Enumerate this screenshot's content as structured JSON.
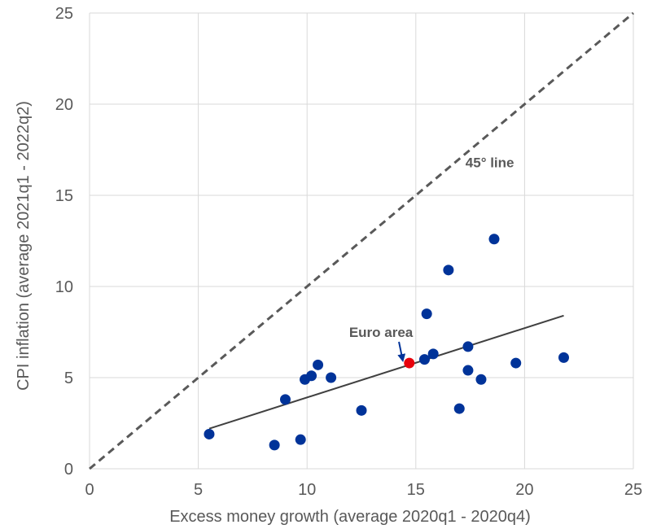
{
  "chart_data": {
    "type": "scatter",
    "title": "",
    "xlabel": "Excess money growth (average 2020q1 - 2020q4)",
    "ylabel": "CPI inflation (average 2021q1 - 2022q2)",
    "xlim": [
      0,
      25
    ],
    "ylim": [
      0,
      25
    ],
    "xticks": [
      0,
      5,
      10,
      15,
      20,
      25
    ],
    "yticks": [
      0,
      5,
      10,
      15,
      20,
      25
    ],
    "grid": true,
    "series": [
      {
        "color": "#003399",
        "points": [
          [
            5.5,
            1.9
          ],
          [
            8.5,
            1.3
          ],
          [
            9.0,
            3.8
          ],
          [
            9.7,
            1.6
          ],
          [
            9.9,
            4.9
          ],
          [
            10.2,
            5.1
          ],
          [
            10.5,
            5.7
          ],
          [
            11.1,
            5.0
          ],
          [
            12.5,
            3.2
          ],
          [
            15.4,
            6.0
          ],
          [
            15.5,
            8.5
          ],
          [
            15.8,
            6.3
          ],
          [
            16.5,
            10.9
          ],
          [
            17.0,
            3.3
          ],
          [
            17.4,
            5.4
          ],
          [
            17.4,
            6.7
          ],
          [
            18.0,
            4.9
          ],
          [
            18.6,
            12.6
          ],
          [
            19.6,
            5.8
          ],
          [
            21.8,
            6.1
          ]
        ]
      },
      {
        "name": "Euro area",
        "color": "#e8000b",
        "points": [
          [
            14.7,
            5.8
          ]
        ]
      }
    ],
    "trendline": {
      "x": [
        5.5,
        21.8
      ],
      "y": [
        2.2,
        8.4
      ],
      "color": "#404040"
    },
    "reference_line": {
      "label": "45° line",
      "x": [
        0,
        25
      ],
      "y": [
        0,
        25
      ],
      "style": "dashed",
      "color": "#595959"
    },
    "annotations": [
      {
        "text": "Euro area",
        "x": 13.4,
        "y": 7.5,
        "arrow_to": [
          14.7,
          5.8
        ]
      },
      {
        "text": "45° line",
        "x": 18.4,
        "y": 16.8
      }
    ]
  }
}
